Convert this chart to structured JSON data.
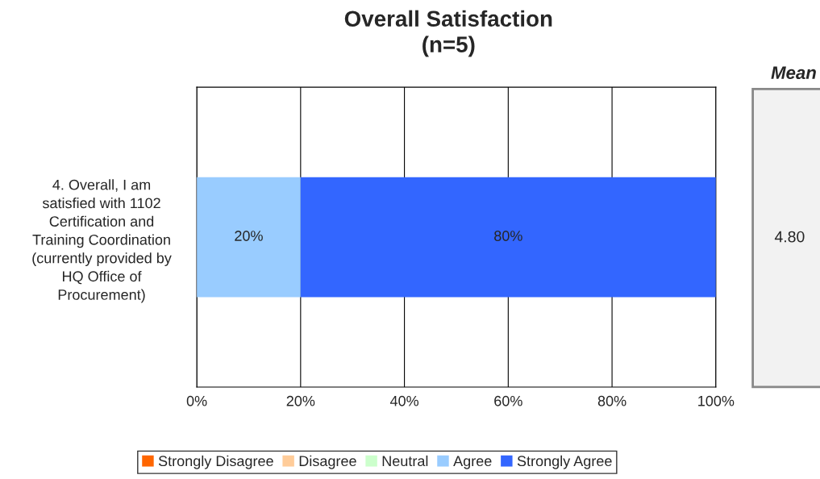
{
  "chart_data": {
    "type": "bar",
    "orientation": "horizontal",
    "stacked": true,
    "title": "Overall Satisfaction\n(n=5)",
    "categories": [
      "4. Overall, I am\nsatisfied with 1102\nCertification and\nTraining Coordination\n(currently provided by\nHQ Office of\nProcurement)"
    ],
    "series": [
      {
        "name": "Strongly Disagree",
        "color": "#ff6600",
        "values": [
          0
        ],
        "value_labels": [
          null
        ]
      },
      {
        "name": "Disagree",
        "color": "#ffcc99",
        "values": [
          0
        ],
        "value_labels": [
          null
        ]
      },
      {
        "name": "Neutral",
        "color": "#ccffcc",
        "values": [
          0
        ],
        "value_labels": [
          null
        ]
      },
      {
        "name": "Agree",
        "color": "#99ccff",
        "values": [
          20
        ],
        "value_labels": [
          "20%"
        ]
      },
      {
        "name": "Strongly Agree",
        "color": "#3366ff",
        "values": [
          80
        ],
        "value_labels": [
          "80%"
        ]
      }
    ],
    "xlim": [
      0,
      100
    ],
    "xticks": [
      {
        "value": 0,
        "label": "0%"
      },
      {
        "value": 20,
        "label": "20%"
      },
      {
        "value": 40,
        "label": "40%"
      },
      {
        "value": 60,
        "label": "60%"
      },
      {
        "value": 80,
        "label": "80%"
      },
      {
        "value": 100,
        "label": "100%"
      }
    ],
    "grid": "x",
    "legend": "bottom",
    "annotations": [
      "Mean",
      "4.80"
    ]
  }
}
